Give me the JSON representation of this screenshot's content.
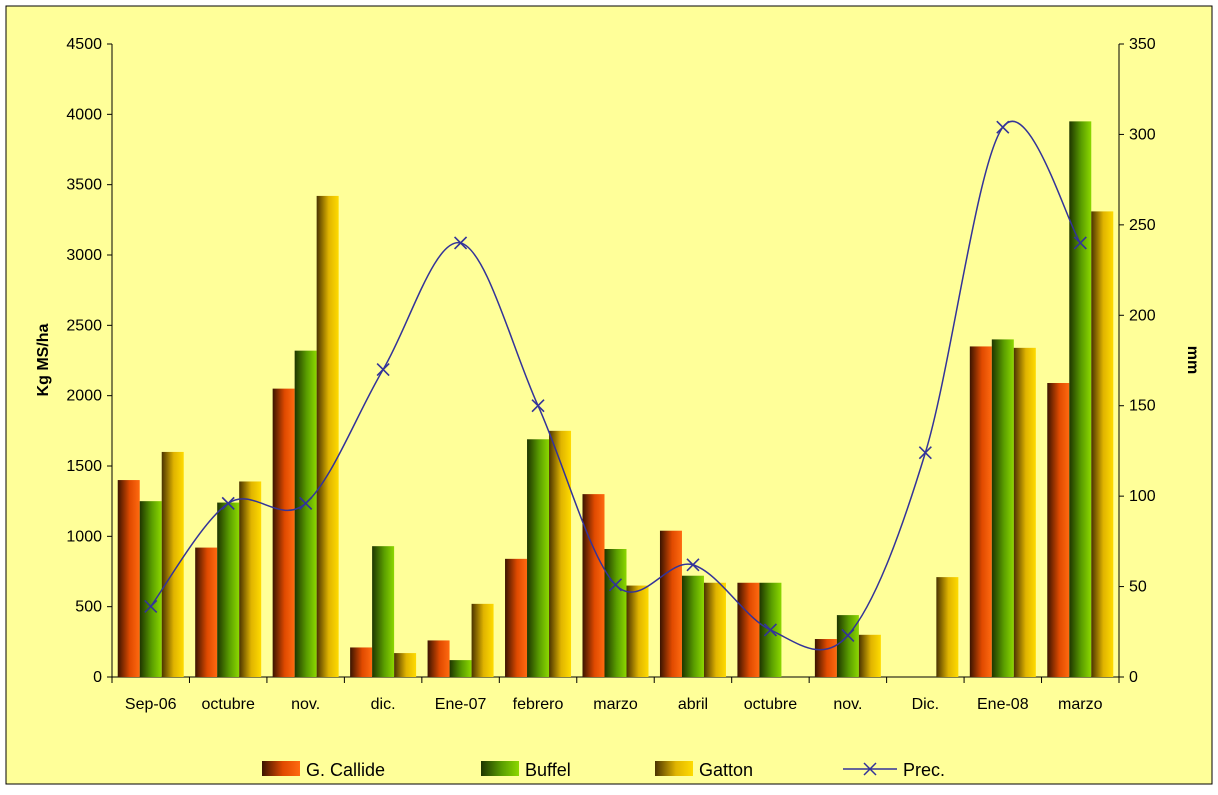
{
  "chart_data": {
    "type": "bar",
    "categories": [
      "Sep-06",
      "octubre",
      "nov.",
      "dic.",
      "Ene-07",
      "febrero",
      "marzo",
      "abril",
      "octubre",
      "nov.",
      "Dic.",
      "Ene-08",
      "marzo"
    ],
    "series": [
      {
        "name": "G. Callide",
        "type": "bar",
        "axis": "left",
        "values": [
          1400,
          920,
          2050,
          210,
          260,
          840,
          1300,
          1040,
          670,
          270,
          0,
          2350,
          2090
        ]
      },
      {
        "name": "Buffel",
        "type": "bar",
        "axis": "left",
        "values": [
          1250,
          1240,
          2320,
          930,
          120,
          1690,
          910,
          720,
          670,
          440,
          0,
          2400,
          3950
        ]
      },
      {
        "name": "Gatton",
        "type": "bar",
        "axis": "left",
        "values": [
          1600,
          1390,
          3420,
          170,
          520,
          1750,
          650,
          670,
          null,
          300,
          710,
          2340,
          3310
        ]
      },
      {
        "name": "Prec.",
        "type": "line",
        "axis": "right",
        "values": [
          39,
          96,
          96,
          170,
          240,
          150,
          51,
          62,
          26,
          23,
          124,
          304,
          240
        ]
      }
    ],
    "ylabel": "Kg MS/ha",
    "y2label": "mm",
    "ylim": [
      0,
      4500
    ],
    "y2lim": [
      0,
      350
    ],
    "yticks": [
      "0",
      "500",
      "1000",
      "1500",
      "2000",
      "2500",
      "3000",
      "3500",
      "4000",
      "4500"
    ],
    "y2ticks": [
      "0",
      "50",
      "100",
      "150",
      "200",
      "250",
      "300",
      "350"
    ],
    "grid": false,
    "legend": "bottom",
    "colors": {
      "background": "#FFFF99",
      "callide": "#E04A00",
      "buffel": "#5A9E00",
      "gatton": "#E0B400",
      "line": "#333399"
    }
  }
}
